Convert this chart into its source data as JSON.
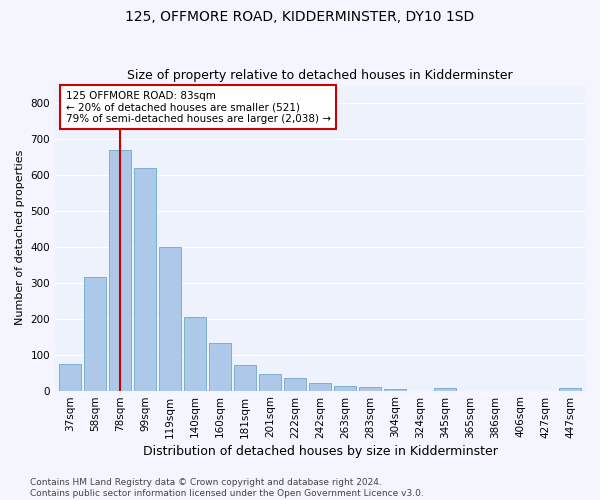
{
  "title": "125, OFFMORE ROAD, KIDDERMINSTER, DY10 1SD",
  "subtitle": "Size of property relative to detached houses in Kidderminster",
  "xlabel": "Distribution of detached houses by size in Kidderminster",
  "ylabel": "Number of detached properties",
  "categories": [
    "37sqm",
    "58sqm",
    "78sqm",
    "99sqm",
    "119sqm",
    "140sqm",
    "160sqm",
    "181sqm",
    "201sqm",
    "222sqm",
    "242sqm",
    "263sqm",
    "283sqm",
    "304sqm",
    "324sqm",
    "345sqm",
    "365sqm",
    "386sqm",
    "406sqm",
    "427sqm",
    "447sqm"
  ],
  "values": [
    75,
    315,
    668,
    617,
    400,
    205,
    133,
    70,
    45,
    35,
    20,
    13,
    10,
    5,
    0,
    8,
    0,
    0,
    0,
    0,
    8
  ],
  "bar_color": "#adc8e8",
  "bar_edge_color": "#6fa8d0",
  "vline_x": 2,
  "vline_color": "#cc0000",
  "annotation_text": "125 OFFMORE ROAD: 83sqm\n← 20% of detached houses are smaller (521)\n79% of semi-detached houses are larger (2,038) →",
  "annotation_box_facecolor": "#ffffff",
  "annotation_box_edgecolor": "#cc0000",
  "ylim": [
    0,
    850
  ],
  "yticks": [
    0,
    100,
    200,
    300,
    400,
    500,
    600,
    700,
    800
  ],
  "ax_facecolor": "#eef2fc",
  "fig_facecolor": "#f5f5ff",
  "grid_color": "#ffffff",
  "footer": "Contains HM Land Registry data © Crown copyright and database right 2024.\nContains public sector information licensed under the Open Government Licence v3.0.",
  "title_fontsize": 10,
  "subtitle_fontsize": 9,
  "xlabel_fontsize": 9,
  "ylabel_fontsize": 8,
  "tick_fontsize": 7.5,
  "annot_fontsize": 7.5,
  "footer_fontsize": 6.5
}
